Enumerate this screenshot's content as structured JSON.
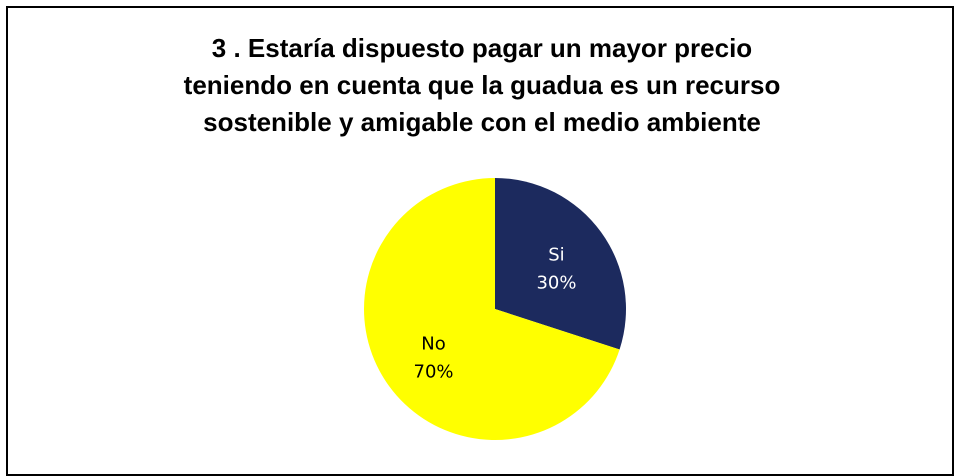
{
  "chart_data": {
    "type": "pie",
    "title_lines": [
      "3 . Estaría dispuesto pagar un mayor precio",
      "teniendo en cuenta que la guadua es un recurso",
      "sostenible y amigable con el medio ambiente"
    ],
    "slices": [
      {
        "label": "Si",
        "value": 30,
        "percent_label": "30%",
        "color": "#1c2a5e",
        "text_color": "#ffffff"
      },
      {
        "label": "No",
        "value": 70,
        "percent_label": "70%",
        "color": "#ffff00",
        "text_color": "#000000"
      }
    ]
  }
}
